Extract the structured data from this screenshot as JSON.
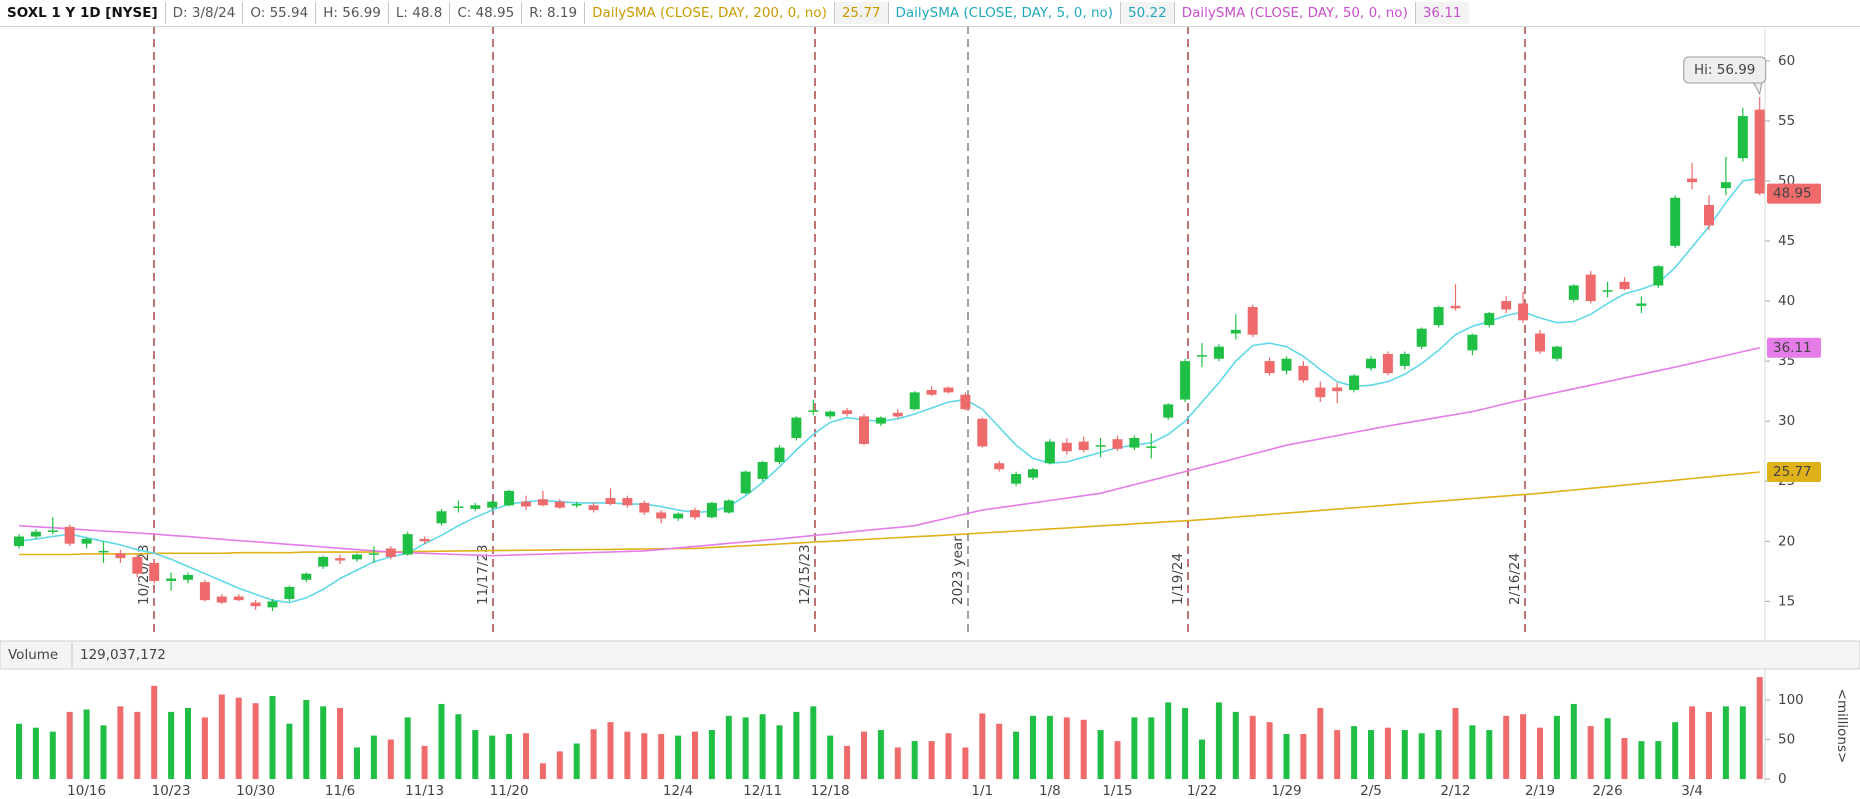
{
  "header": {
    "symbol": "SOXL 1 Y 1D [NYSE]",
    "readout": [
      "D: 3/8/24",
      "O: 55.94",
      "H: 56.99",
      "L: 48.8",
      "C: 48.95",
      "R: 8.19"
    ]
  },
  "chart_data": {
    "type": "candlestick",
    "categories": [
      null,
      null,
      null,
      null,
      "10/16",
      null,
      null,
      null,
      null,
      "10/23",
      null,
      null,
      null,
      null,
      "10/30",
      null,
      null,
      null,
      null,
      "11/6",
      null,
      null,
      null,
      null,
      "11/13",
      null,
      null,
      null,
      null,
      "11/20",
      null,
      null,
      null,
      null,
      null,
      null,
      null,
      null,
      null,
      "12/4",
      null,
      null,
      null,
      null,
      "12/11",
      null,
      null,
      null,
      "12/18",
      null,
      null,
      null,
      null,
      null,
      null,
      null,
      null,
      "1/1",
      null,
      null,
      null,
      "1/8",
      null,
      null,
      null,
      "1/15",
      null,
      null,
      null,
      null,
      "1/22",
      null,
      null,
      null,
      null,
      "1/29",
      null,
      null,
      null,
      null,
      "2/5",
      null,
      null,
      null,
      null,
      "2/12",
      null,
      null,
      null,
      null,
      "2/19",
      null,
      null,
      null,
      "2/26",
      null,
      null,
      null,
      null,
      "3/4",
      null,
      null,
      null,
      null
    ],
    "open": [
      19.6,
      20.4,
      20.9,
      21.2,
      19.8,
      19.1,
      19.0,
      18.7,
      18.2,
      16.7,
      16.8,
      16.6,
      15.4,
      15.4,
      14.9,
      14.5,
      15.2,
      16.8,
      17.9,
      18.6,
      18.5,
      18.9,
      19.4,
      18.9,
      20.2,
      21.5,
      22.8,
      22.7,
      22.8,
      23.0,
      23.3,
      23.5,
      23.3,
      23.0,
      23.0,
      23.6,
      23.6,
      23.2,
      22.4,
      21.9,
      22.6,
      22.0,
      22.4,
      24.0,
      25.2,
      26.6,
      28.6,
      30.9,
      30.4,
      30.9,
      30.4,
      29.8,
      30.7,
      31.0,
      32.6,
      32.8,
      32.2,
      30.2,
      26.5,
      24.8,
      25.3,
      26.5,
      28.2,
      28.3,
      27.9,
      28.5,
      27.8,
      27.9,
      30.3,
      31.8,
      35.4,
      35.2,
      37.3,
      39.5,
      35.0,
      34.2,
      34.6,
      32.8,
      32.8,
      32.6,
      34.4,
      35.6,
      34.6,
      36.2,
      38.0,
      39.6,
      35.9,
      38.0,
      40.0,
      39.8,
      37.3,
      35.2,
      40.1,
      42.2,
      40.8,
      41.6,
      39.6,
      41.3,
      44.6,
      50.2,
      48.0,
      49.4,
      51.9,
      55.94
    ],
    "high": [
      20.6,
      21.0,
      22.0,
      21.4,
      20.3,
      20.0,
      19.3,
      18.9,
      18.5,
      17.4,
      17.4,
      16.8,
      15.6,
      15.6,
      15.1,
      15.2,
      16.3,
      17.4,
      18.8,
      18.9,
      19.0,
      19.6,
      19.6,
      20.8,
      20.4,
      22.7,
      23.4,
      23.2,
      23.4,
      24.3,
      23.8,
      24.2,
      23.5,
      23.3,
      23.2,
      24.4,
      23.8,
      23.4,
      22.6,
      22.4,
      22.8,
      23.3,
      23.5,
      25.9,
      26.7,
      28.0,
      30.4,
      31.8,
      30.9,
      31.1,
      30.6,
      30.4,
      31.0,
      32.5,
      32.9,
      32.9,
      32.4,
      30.3,
      26.7,
      25.8,
      26.1,
      28.5,
      28.6,
      28.7,
      28.6,
      28.8,
      28.8,
      29.0,
      31.5,
      35.2,
      36.5,
      36.4,
      38.9,
      39.7,
      35.3,
      35.4,
      35.0,
      33.3,
      33.2,
      33.9,
      35.4,
      35.8,
      35.8,
      37.8,
      39.6,
      41.4,
      37.3,
      39.1,
      40.4,
      40.8,
      37.6,
      36.3,
      41.4,
      42.5,
      41.6,
      42.0,
      40.4,
      43.0,
      48.8,
      51.5,
      48.8,
      52.0,
      56.1,
      56.99
    ],
    "low": [
      19.4,
      20.2,
      20.6,
      19.6,
      19.4,
      18.2,
      18.2,
      17.0,
      16.5,
      15.9,
      16.5,
      15.0,
      14.8,
      15.0,
      14.3,
      14.2,
      15.0,
      16.6,
      17.7,
      18.1,
      18.3,
      18.2,
      18.5,
      18.8,
      19.8,
      21.3,
      22.4,
      22.5,
      22.6,
      22.9,
      22.6,
      22.9,
      22.7,
      22.8,
      22.4,
      23.0,
      22.8,
      22.2,
      21.5,
      21.7,
      21.8,
      21.9,
      22.3,
      23.9,
      25.0,
      26.4,
      28.4,
      30.5,
      30.2,
      30.4,
      28.0,
      29.6,
      30.2,
      30.9,
      32.1,
      32.3,
      30.9,
      27.8,
      25.8,
      24.6,
      25.1,
      26.4,
      27.2,
      27.4,
      27.0,
      27.5,
      27.6,
      26.9,
      30.1,
      31.6,
      34.5,
      35.0,
      36.8,
      37.0,
      33.8,
      33.9,
      33.2,
      31.6,
      31.5,
      32.4,
      34.2,
      33.8,
      34.3,
      36.0,
      37.8,
      39.2,
      35.5,
      37.8,
      39.0,
      38.2,
      35.6,
      35.0,
      39.9,
      39.8,
      40.3,
      40.9,
      39.0,
      41.1,
      44.4,
      49.3,
      45.9,
      48.8,
      51.6,
      48.8
    ],
    "close": [
      20.4,
      20.8,
      20.9,
      19.8,
      20.2,
      19.2,
      18.6,
      17.3,
      16.7,
      16.9,
      17.2,
      15.1,
      14.9,
      15.1,
      14.6,
      15.0,
      16.2,
      17.3,
      18.7,
      18.4,
      18.9,
      19.0,
      18.7,
      20.6,
      20.0,
      22.5,
      22.9,
      23.0,
      23.3,
      24.2,
      22.9,
      23.0,
      22.8,
      23.1,
      22.6,
      23.1,
      23.0,
      22.4,
      21.9,
      22.3,
      22.0,
      23.2,
      23.4,
      25.8,
      26.6,
      27.8,
      30.3,
      30.9,
      30.8,
      30.6,
      28.1,
      30.3,
      30.4,
      32.4,
      32.2,
      32.4,
      31.0,
      27.9,
      26.0,
      25.6,
      26.0,
      28.3,
      27.5,
      27.6,
      28.0,
      27.7,
      28.6,
      27.9,
      31.4,
      35.0,
      35.5,
      36.2,
      37.6,
      37.2,
      34.0,
      35.2,
      33.4,
      32.0,
      32.5,
      33.8,
      35.2,
      34.0,
      35.6,
      37.7,
      39.5,
      39.4,
      37.2,
      39.0,
      39.3,
      38.4,
      35.8,
      36.2,
      41.3,
      40.0,
      40.9,
      41.0,
      39.8,
      42.9,
      48.6,
      49.9,
      46.3,
      49.9,
      55.4,
      48.95
    ],
    "volume": [
      70,
      65,
      60,
      85,
      88,
      68,
      92,
      85,
      118,
      85,
      90,
      78,
      107,
      103,
      96,
      105,
      70,
      100,
      92,
      90,
      40,
      55,
      50,
      78,
      42,
      95,
      82,
      62,
      55,
      57,
      58,
      20,
      35,
      45,
      63,
      72,
      60,
      58,
      57,
      55,
      60,
      62,
      80,
      78,
      82,
      68,
      85,
      92,
      55,
      42,
      60,
      62,
      40,
      48,
      48,
      58,
      40,
      83,
      70,
      60,
      80,
      80,
      78,
      75,
      62,
      48,
      78,
      78,
      97,
      90,
      50,
      97,
      85,
      80,
      72,
      57,
      57,
      90,
      62,
      67,
      62,
      65,
      62,
      58,
      62,
      90,
      68,
      62,
      80,
      82,
      65,
      80,
      95,
      67,
      77,
      52,
      48,
      48,
      72,
      92,
      85,
      92,
      92,
      129.037172
    ],
    "up_color": "#1fbf45",
    "down_color": "#ef6b6b",
    "lines": [
      {
        "name": "DailySMA (CLOSE, DAY, 200, 0, no)",
        "last_label": "25.77",
        "color": "#e0b21a",
        "text_color": "#c99a00",
        "values": [
          18.9,
          18.9,
          18.9,
          18.9,
          18.95,
          18.95,
          18.95,
          18.95,
          19.0,
          19.0,
          19.0,
          19.0,
          19.0,
          19.05,
          19.05,
          19.05,
          19.05,
          19.1,
          19.1,
          19.1,
          19.1,
          19.12,
          19.13,
          19.15,
          19.16,
          19.18,
          19.2,
          19.21,
          19.23,
          19.24,
          19.26,
          19.27,
          19.29,
          19.3,
          19.32,
          19.33,
          19.35,
          19.36,
          19.38,
          19.39,
          19.4,
          19.48,
          19.55,
          19.63,
          19.7,
          19.78,
          19.85,
          19.93,
          20.0,
          20.08,
          20.15,
          20.23,
          20.3,
          20.38,
          20.45,
          20.53,
          20.6,
          20.69,
          20.77,
          20.86,
          20.94,
          21.03,
          21.11,
          21.2,
          21.29,
          21.37,
          21.46,
          21.54,
          21.63,
          21.71,
          21.8,
          21.91,
          22.02,
          22.13,
          22.24,
          22.35,
          22.46,
          22.57,
          22.68,
          22.79,
          22.9,
          23.01,
          23.12,
          23.23,
          23.34,
          23.45,
          23.56,
          23.67,
          23.78,
          23.89,
          24.0,
          24.14,
          24.27,
          24.41,
          24.54,
          24.68,
          24.82,
          24.95,
          25.09,
          25.23,
          25.36,
          25.5,
          25.63,
          25.77
        ]
      },
      {
        "name": "DailySMA (CLOSE, DAY, 5, 0, no)",
        "last_label": "50.22",
        "color": "#5fd8e8",
        "text_color": "#1fa9bd",
        "values": [
          20.0,
          20.2,
          20.4,
          20.6,
          20.3,
          20.0,
          19.7,
          19.3,
          19.0,
          18.5,
          17.9,
          17.3,
          16.7,
          16.1,
          15.6,
          15.1,
          14.9,
          15.3,
          16.0,
          16.9,
          17.6,
          18.3,
          18.7,
          19.0,
          19.8,
          20.5,
          21.3,
          22.0,
          22.6,
          23.1,
          23.3,
          23.4,
          23.3,
          23.2,
          23.2,
          23.2,
          23.1,
          23.1,
          22.9,
          22.6,
          22.4,
          22.5,
          22.9,
          23.8,
          24.9,
          26.2,
          27.6,
          28.9,
          29.9,
          30.3,
          30.1,
          30.0,
          30.2,
          30.6,
          31.1,
          31.6,
          31.8,
          31.0,
          29.5,
          28.0,
          26.9,
          26.5,
          26.6,
          27.0,
          27.4,
          27.8,
          28.0,
          28.2,
          28.9,
          30.0,
          31.6,
          33.2,
          35.0,
          36.3,
          36.5,
          36.2,
          35.4,
          34.3,
          33.3,
          32.9,
          33.0,
          33.3,
          33.9,
          34.8,
          35.9,
          37.2,
          37.9,
          38.3,
          38.8,
          39.1,
          38.6,
          38.2,
          38.3,
          38.9,
          39.8,
          40.6,
          41.0,
          41.5,
          42.8,
          44.5,
          46.2,
          48.2,
          50.0,
          50.22
        ]
      },
      {
        "name": "DailySMA (CLOSE, DAY, 50, 0, no)",
        "last_label": "36.11",
        "color": "#e57ce8",
        "text_color": "#c94fcc",
        "values": [
          21.3,
          21.21,
          21.13,
          21.04,
          20.95,
          20.86,
          20.78,
          20.69,
          20.6,
          20.49,
          20.39,
          20.28,
          20.17,
          20.06,
          19.96,
          19.85,
          19.74,
          19.64,
          19.53,
          19.42,
          19.31,
          19.21,
          19.1,
          19.05,
          19.0,
          18.95,
          18.9,
          18.85,
          18.8,
          18.84,
          18.89,
          18.93,
          18.98,
          19.02,
          19.07,
          19.11,
          19.16,
          19.2,
          19.33,
          19.45,
          19.58,
          19.7,
          19.83,
          19.95,
          20.08,
          20.2,
          20.34,
          20.48,
          20.61,
          20.75,
          20.89,
          21.03,
          21.16,
          21.3,
          21.63,
          21.95,
          22.28,
          22.6,
          22.8,
          23.0,
          23.2,
          23.4,
          23.6,
          23.8,
          24.0,
          24.36,
          24.72,
          25.08,
          25.44,
          25.8,
          26.17,
          26.53,
          26.9,
          27.27,
          27.63,
          28.0,
          28.27,
          28.53,
          28.8,
          29.07,
          29.33,
          29.6,
          29.84,
          30.08,
          30.32,
          30.56,
          30.8,
          31.13,
          31.47,
          31.8,
          32.1,
          32.4,
          32.7,
          33.0,
          33.3,
          33.6,
          33.9,
          34.2,
          34.5,
          34.82,
          35.14,
          35.47,
          35.79,
          36.11
        ]
      }
    ],
    "last_close_label": "48.95",
    "high_label": "Hi: 56.99",
    "ylim": [
      12.2,
      62.9
    ],
    "yticks": [
      15,
      20,
      25,
      30,
      35,
      40,
      45,
      50,
      55,
      60
    ],
    "grid": false,
    "markers": [
      {
        "label": "10/20/23",
        "color": "#a33a3a"
      },
      {
        "label": "11/17/23",
        "color": "#a33a3a"
      },
      {
        "label": "12/15/23",
        "color": "#a33a3a"
      },
      {
        "label": "2023 year",
        "color": "#777777"
      },
      {
        "label": "1/19/24",
        "color": "#a33a3a"
      },
      {
        "label": "2/16/24",
        "color": "#a33a3a"
      }
    ],
    "volume_title": "Volume",
    "volume_readout": "129,037,172",
    "volume_axis_label": "<millions>",
    "volume_ylim": [
      -5,
      138
    ],
    "volume_yticks": [
      0,
      50,
      100
    ]
  }
}
